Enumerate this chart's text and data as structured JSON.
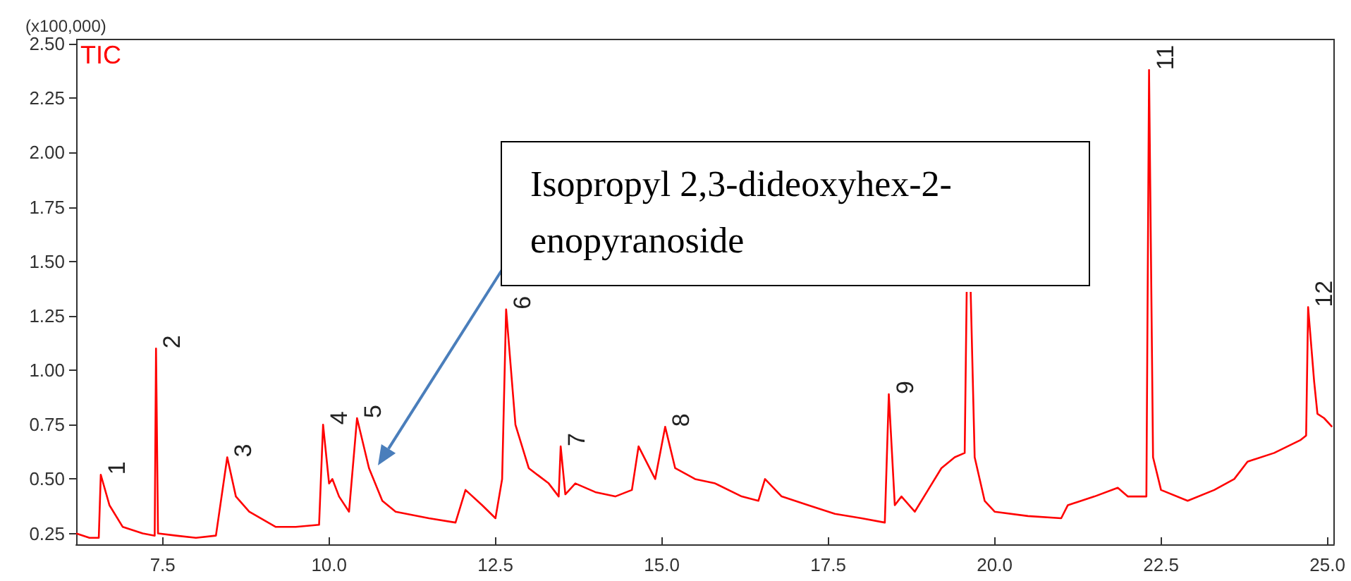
{
  "chart_data": {
    "type": "line",
    "ylabel": "(x100,000)",
    "xlim": [
      6.2,
      25.1
    ],
    "ylim": [
      0.2,
      2.52
    ],
    "xticks": [
      {
        "value": 7.5,
        "label": "7.5"
      },
      {
        "value": 10,
        "label": "10.0"
      },
      {
        "value": 12.5,
        "label": "12.5"
      },
      {
        "value": 15,
        "label": "15.0"
      },
      {
        "value": 17.5,
        "label": "17.5"
      },
      {
        "value": 20,
        "label": "20.0"
      },
      {
        "value": 22.5,
        "label": "22.5"
      },
      {
        "value": 25,
        "label": "25.0"
      }
    ],
    "yticks": [
      {
        "value": 0.25,
        "label": "0.25"
      },
      {
        "value": 0.5,
        "label": "0.50"
      },
      {
        "value": 0.75,
        "label": "0.75"
      },
      {
        "value": 1,
        "label": "1.00"
      },
      {
        "value": 1.25,
        "label": "1.25"
      },
      {
        "value": 1.5,
        "label": "1.50"
      },
      {
        "value": 1.75,
        "label": "1.75"
      },
      {
        "value": 2,
        "label": "2.00"
      },
      {
        "value": 2.25,
        "label": "2.25"
      },
      {
        "value": 2.5,
        "label": "2.50"
      }
    ],
    "grid": false,
    "marker": "none",
    "line_style": "solid",
    "series": [
      {
        "name": "TIC",
        "color": "#ff0000",
        "x": [
          6.2,
          6.4,
          6.54,
          6.57,
          6.7,
          6.9,
          7.2,
          7.38,
          7.4,
          7.43,
          7.7,
          8.0,
          8.3,
          8.47,
          8.6,
          8.8,
          9.2,
          9.5,
          9.85,
          9.91,
          10.0,
          10.05,
          10.15,
          10.3,
          10.42,
          10.6,
          10.8,
          11.0,
          11.5,
          11.9,
          12.05,
          12.3,
          12.5,
          12.6,
          12.66,
          12.8,
          13.0,
          13.3,
          13.45,
          13.48,
          13.55,
          13.7,
          14.0,
          14.3,
          14.55,
          14.65,
          14.9,
          15.05,
          15.2,
          15.5,
          15.8,
          16.2,
          16.45,
          16.55,
          16.8,
          17.2,
          17.6,
          18.0,
          18.35,
          18.41,
          18.5,
          18.6,
          18.8,
          19.0,
          19.2,
          19.4,
          19.55,
          19.58,
          19.61,
          19.64,
          19.7,
          19.85,
          20.0,
          20.5,
          21.0,
          21.1,
          21.5,
          21.85,
          22.0,
          22.28,
          22.32,
          22.38,
          22.5,
          22.9,
          23.3,
          23.6,
          23.8,
          24.2,
          24.6,
          24.68,
          24.71,
          24.8,
          24.85,
          24.95,
          25.07
        ],
        "values": [
          0.25,
          0.23,
          0.23,
          0.52,
          0.38,
          0.28,
          0.25,
          0.24,
          1.1,
          0.25,
          0.24,
          0.23,
          0.24,
          0.6,
          0.42,
          0.35,
          0.28,
          0.28,
          0.29,
          0.75,
          0.48,
          0.5,
          0.42,
          0.35,
          0.78,
          0.55,
          0.4,
          0.35,
          0.32,
          0.3,
          0.45,
          0.38,
          0.32,
          0.5,
          1.28,
          0.75,
          0.55,
          0.48,
          0.42,
          0.65,
          0.43,
          0.48,
          0.44,
          0.42,
          0.45,
          0.65,
          0.5,
          0.74,
          0.55,
          0.5,
          0.48,
          0.42,
          0.4,
          0.5,
          0.42,
          0.38,
          0.34,
          0.32,
          0.3,
          0.89,
          0.38,
          0.42,
          0.35,
          0.45,
          0.55,
          0.6,
          0.62,
          1.36,
          null,
          1.36,
          0.6,
          0.4,
          0.35,
          0.33,
          0.32,
          0.38,
          0.42,
          0.46,
          0.42,
          0.42,
          2.38,
          0.6,
          0.45,
          0.4,
          0.45,
          0.5,
          0.58,
          0.62,
          0.68,
          0.7,
          1.29,
          0.95,
          0.8,
          0.78,
          0.74
        ]
      }
    ],
    "annotations": [
      "Isopropyl 2,3-dideoxyhex-2-enopyranoside",
      {
        "text": "1",
        "x": 6.57,
        "y": 0.52
      },
      {
        "text": "2",
        "x": 7.4,
        "y": 1.1
      },
      {
        "text": "3",
        "x": 8.47,
        "y": 0.6
      },
      {
        "text": "4",
        "x": 9.91,
        "y": 0.75
      },
      {
        "text": "5",
        "x": 10.42,
        "y": 0.78
      },
      {
        "text": "6",
        "x": 12.66,
        "y": 1.28
      },
      {
        "text": "7",
        "x": 13.48,
        "y": 0.65
      },
      {
        "text": "8",
        "x": 15.05,
        "y": 0.74
      },
      {
        "text": "9",
        "x": 18.41,
        "y": 0.89
      },
      {
        "text": "11",
        "x": 22.32,
        "y": 2.38
      },
      {
        "text": "12",
        "x": 24.71,
        "y": 1.29
      }
    ]
  }
}
